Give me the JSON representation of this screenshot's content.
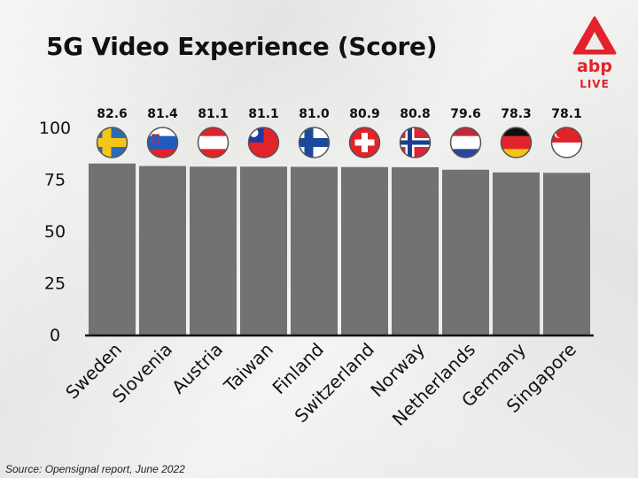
{
  "header": {
    "title": "5G Video Experience (Score)"
  },
  "logo": {
    "name": "abp",
    "tagline": "LIVE",
    "color": "#e3222b"
  },
  "footer": {
    "source": "Source: Opensignal report, June 2022"
  },
  "colors": {
    "bar": "#727272",
    "axis": "#111111",
    "flag_border": "#555555"
  },
  "chart_data": {
    "type": "bar",
    "title": "5G Video Experience (Score)",
    "xlabel": "",
    "ylabel": "",
    "ylim": [
      0,
      100
    ],
    "yticks": [
      "0",
      "25",
      "50",
      "75",
      "100"
    ],
    "categories": [
      "Sweden",
      "Slovenia",
      "Austria",
      "Taiwan",
      "Finland",
      "Switzerland",
      "Norway",
      "Netherlands",
      "Germany",
      "Singapore"
    ],
    "values": [
      82.6,
      81.4,
      81.1,
      81.1,
      81.0,
      80.9,
      80.8,
      79.6,
      78.3,
      78.1
    ],
    "value_labels": [
      "82.6",
      "81.4",
      "81.1",
      "81.1",
      "81.0",
      "80.9",
      "80.8",
      "79.6",
      "78.3",
      "78.1"
    ],
    "flag_icons": [
      "sweden-flag-icon",
      "slovenia-flag-icon",
      "austria-flag-icon",
      "taiwan-flag-icon",
      "finland-flag-icon",
      "switzerland-flag-icon",
      "norway-flag-icon",
      "netherlands-flag-icon",
      "germany-flag-icon",
      "singapore-flag-icon"
    ],
    "grid": false,
    "legend": "none"
  }
}
